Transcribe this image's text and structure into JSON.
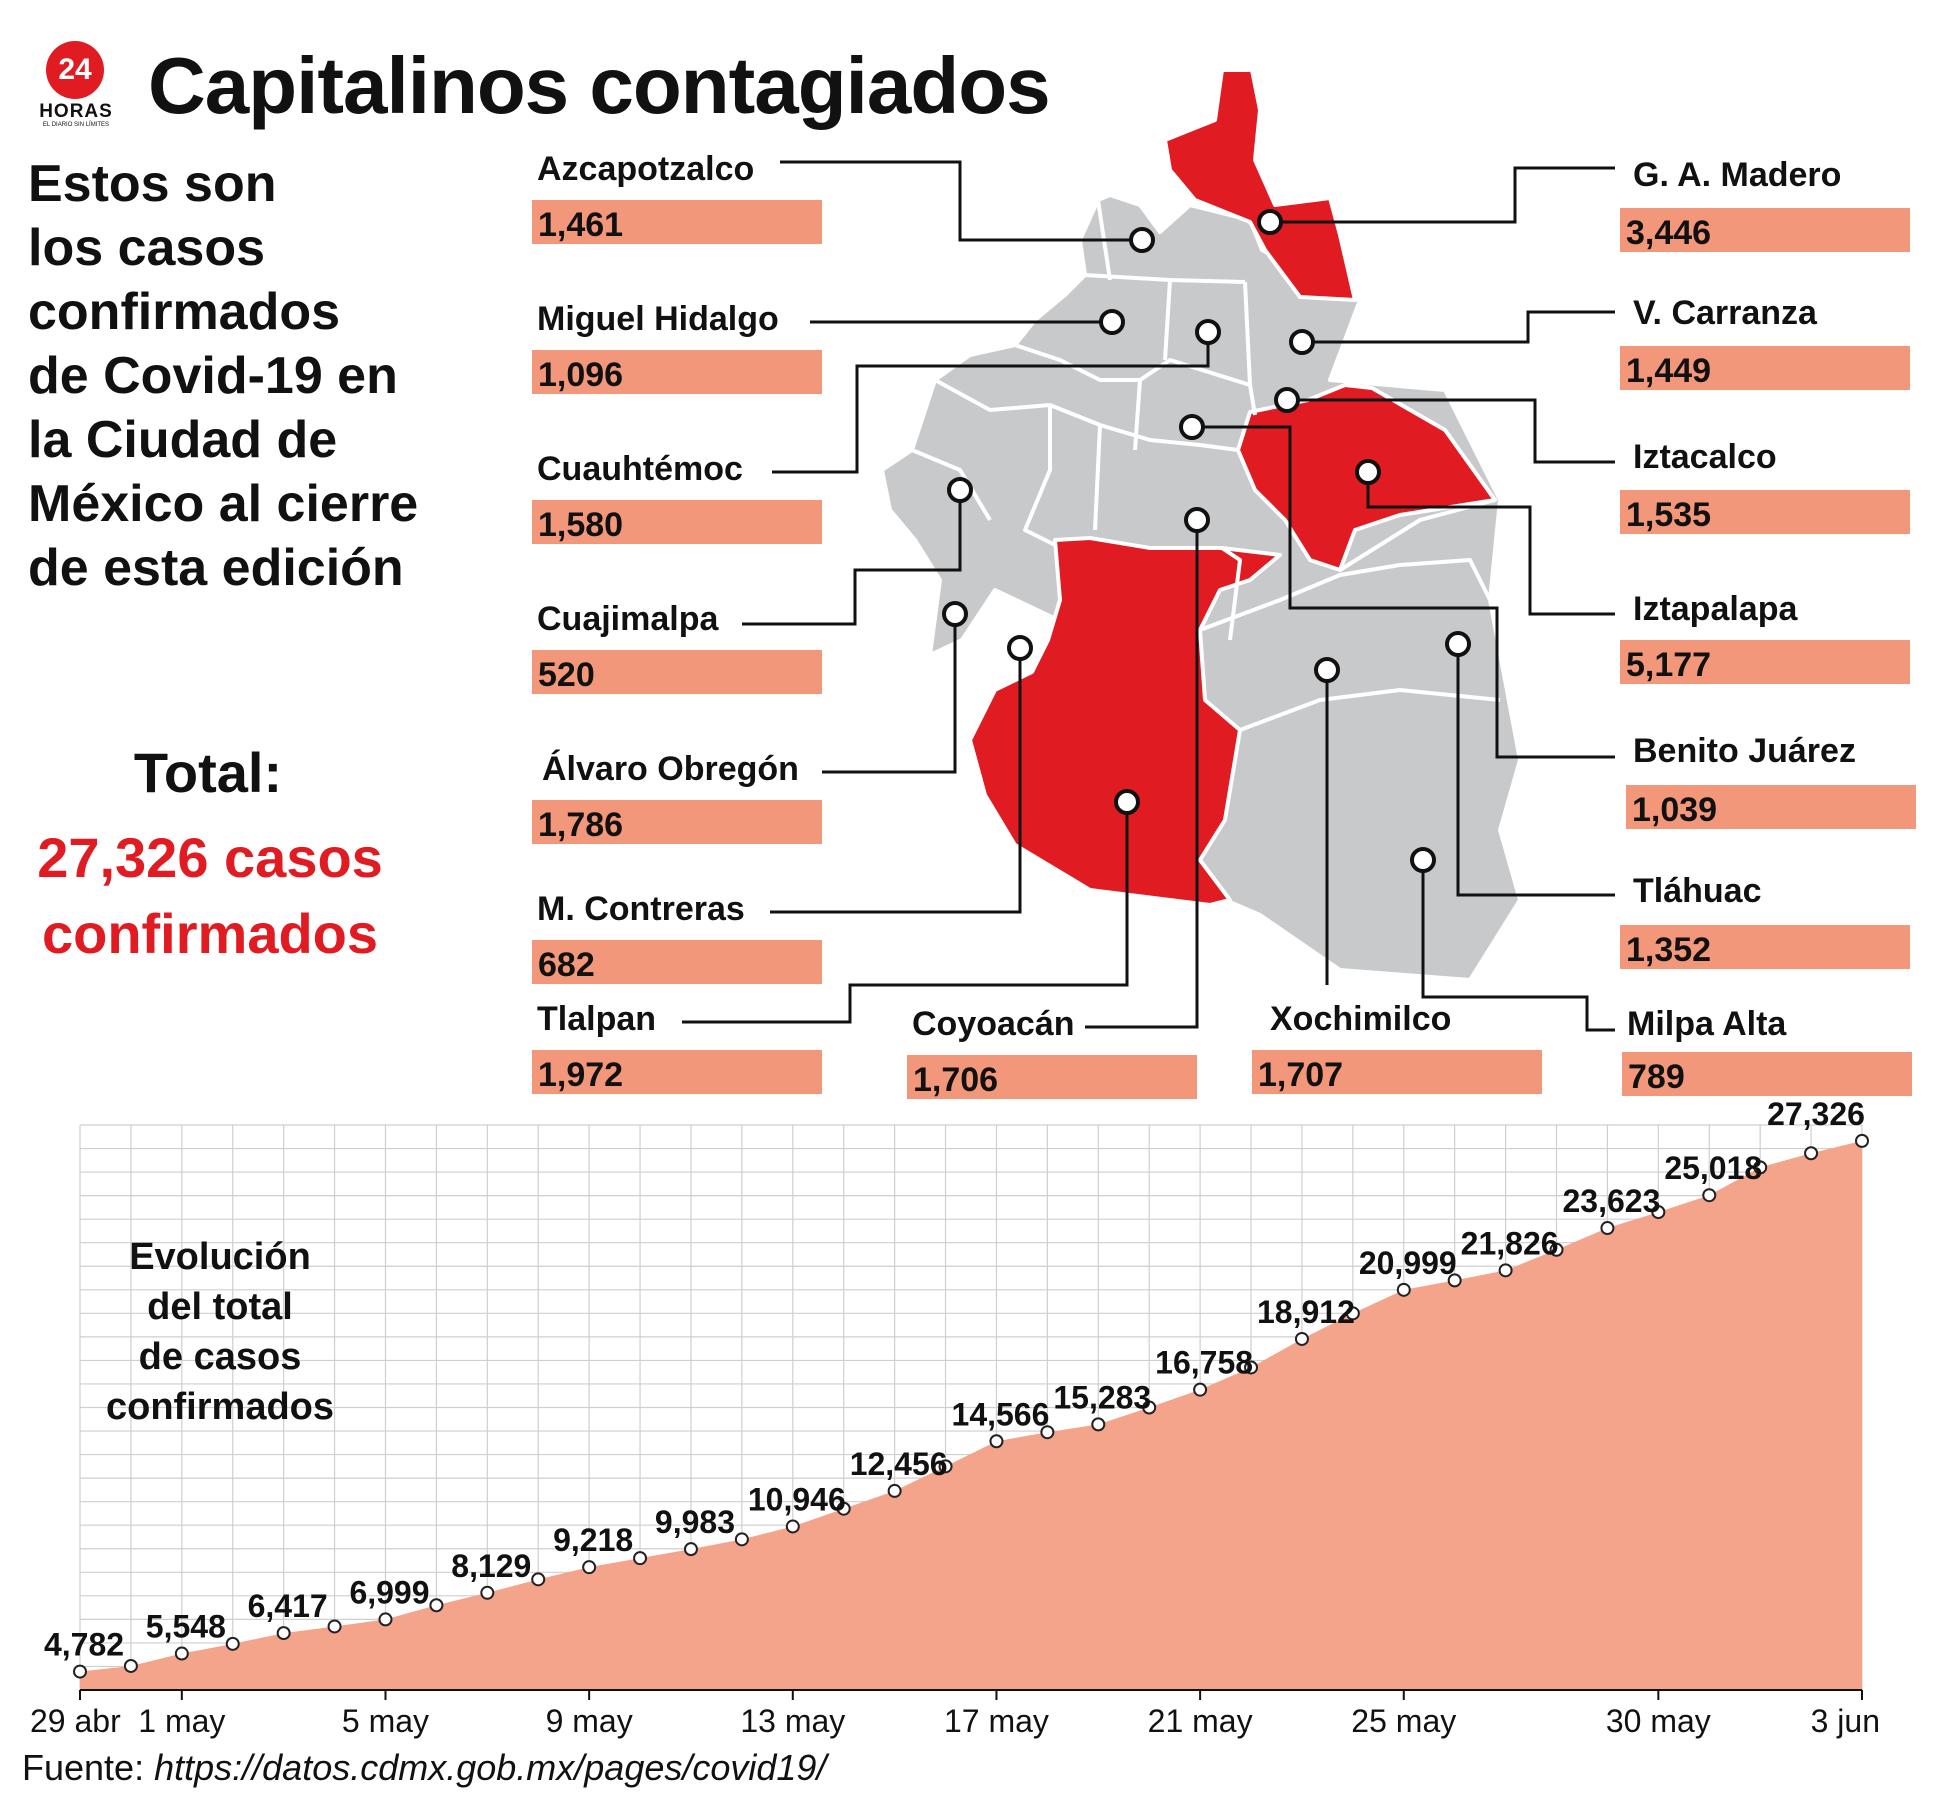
{
  "logo": {
    "number": "24",
    "wordmark": "HORAS",
    "tagline": "EL DIARIO SIN LÍMITES"
  },
  "title": "Capitalinos contagiados",
  "intro_lines": [
    "Estos son",
    "los casos",
    "confirmados",
    "de Covid-19 en",
    "la Ciudad de",
    "México al cierre",
    "de esta edición"
  ],
  "total": {
    "label": "Total:",
    "value_lines": [
      "27,326 casos",
      "confirmados"
    ]
  },
  "colors": {
    "highlight": "#e01b22",
    "map_gray": "#c8c9cb",
    "bar_fill": "#f3977b",
    "area_fill": "#f3a48a"
  },
  "boroughs": [
    {
      "name": "Azcapotzalco",
      "cases": "1,461",
      "highlighted": false
    },
    {
      "name": "Miguel Hidalgo",
      "cases": "1,096",
      "highlighted": false
    },
    {
      "name": "Cuauhtémoc",
      "cases": "1,580",
      "highlighted": false
    },
    {
      "name": "Cuajimalpa",
      "cases": "520",
      "highlighted": false
    },
    {
      "name": "Álvaro Obregón",
      "cases": "1,786",
      "highlighted": false
    },
    {
      "name": "M. Contreras",
      "cases": "682",
      "highlighted": false
    },
    {
      "name": "Tlalpan",
      "cases": "1,972",
      "highlighted": true
    },
    {
      "name": "Coyoacán",
      "cases": "1,706",
      "highlighted": false
    },
    {
      "name": "Xochimilco",
      "cases": "1,707",
      "highlighted": false
    },
    {
      "name": "G. A. Madero",
      "cases": "3,446",
      "highlighted": true
    },
    {
      "name": "V. Carranza",
      "cases": "1,449",
      "highlighted": false
    },
    {
      "name": "Iztacalco",
      "cases": "1,535",
      "highlighted": false
    },
    {
      "name": "Iztapalapa",
      "cases": "5,177",
      "highlighted": true
    },
    {
      "name": "Benito Juárez",
      "cases": "1,039",
      "highlighted": false
    },
    {
      "name": "Tláhuac",
      "cases": "1,352",
      "highlighted": false
    },
    {
      "name": "Milpa Alta",
      "cases": "789",
      "highlighted": false
    }
  ],
  "chart_note_lines": [
    "Evolución",
    "del total",
    "de casos",
    "confirmados"
  ],
  "source": {
    "prefix": "Fuente: ",
    "url": "https://datos.cdmx.gob.mx/pages/covid19/"
  },
  "chart_data": {
    "type": "area",
    "title": "Evolución del total de casos confirmados",
    "x_tick_labels": [
      "29 abr",
      "1 may",
      "5 may",
      "9 may",
      "13 may",
      "17 may",
      "21 may",
      "25 may",
      "30 may",
      "3 jun"
    ],
    "x": [
      "29 abr",
      "30 abr",
      "1 may",
      "2 may",
      "3 may",
      "4 may",
      "5 may",
      "6 may",
      "7 may",
      "8 may",
      "9 may",
      "10 may",
      "11 may",
      "12 may",
      "13 may",
      "14 may",
      "15 may",
      "16 may",
      "17 may",
      "18 may",
      "19 may",
      "20 may",
      "21 may",
      "22 may",
      "23 may",
      "24 may",
      "25 may",
      "26 may",
      "27 may",
      "28 may",
      "29 may",
      "30 may",
      "31 may",
      "1 jun",
      "2 jun",
      "3 jun"
    ],
    "values": [
      4782,
      5020,
      5548,
      5960,
      6417,
      6700,
      6999,
      7600,
      8129,
      8700,
      9218,
      9600,
      9983,
      10400,
      10946,
      11700,
      12456,
      13500,
      14566,
      14950,
      15283,
      16000,
      16758,
      17700,
      18912,
      20000,
      20999,
      21400,
      21826,
      22700,
      23623,
      24300,
      25018,
      26200,
      26800,
      27326
    ],
    "labeled_values": [
      {
        "x": "29 abr",
        "label": "4,782"
      },
      {
        "x": "1 may",
        "label": "5,548"
      },
      {
        "x": "3 may",
        "label": "6,417"
      },
      {
        "x": "5 may",
        "label": "6,999"
      },
      {
        "x": "7 may",
        "label": "8,129"
      },
      {
        "x": "9 may",
        "label": "9,218"
      },
      {
        "x": "11 may",
        "label": "9,983"
      },
      {
        "x": "13 may",
        "label": "10,946"
      },
      {
        "x": "15 may",
        "label": "12,456"
      },
      {
        "x": "17 may",
        "label": "14,566"
      },
      {
        "x": "19 may",
        "label": "15,283"
      },
      {
        "x": "21 may",
        "label": "16,758"
      },
      {
        "x": "23 may",
        "label": "18,912"
      },
      {
        "x": "25 may",
        "label": "20,999"
      },
      {
        "x": "27 may",
        "label": "21,826"
      },
      {
        "x": "29 may",
        "label": "23,623"
      },
      {
        "x": "31 may",
        "label": "25,018"
      },
      {
        "x": "3 jun",
        "label": "27,326"
      }
    ],
    "ylim": [
      4000,
      28000
    ],
    "grid": true,
    "xlabel": "",
    "ylabel": ""
  }
}
